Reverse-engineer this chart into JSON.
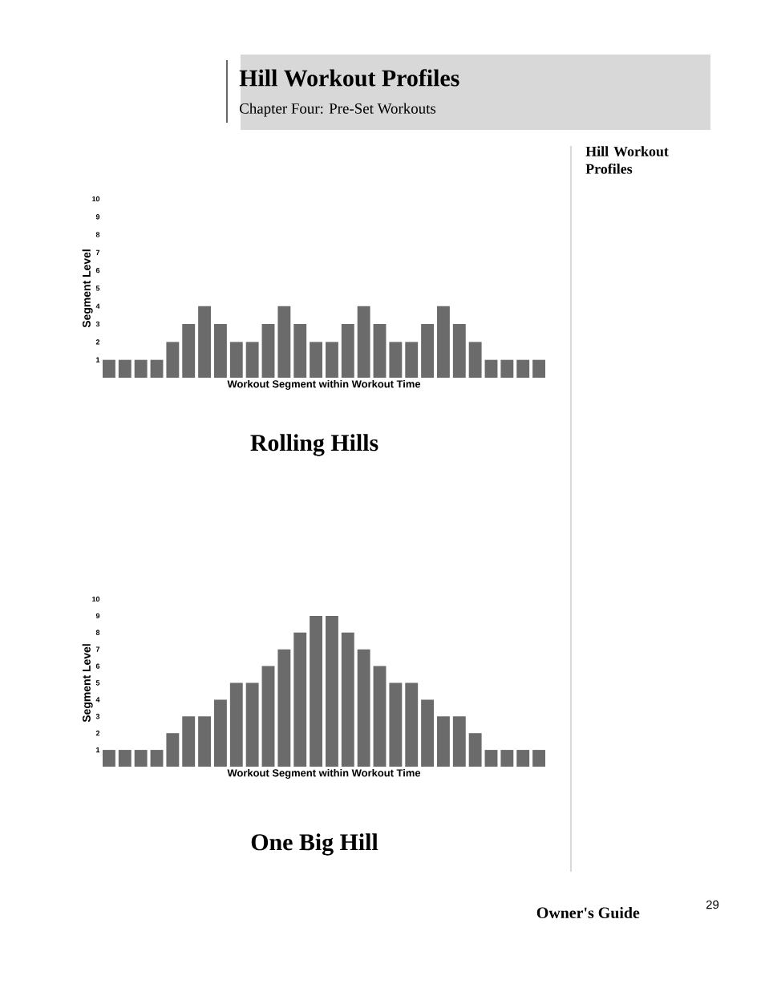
{
  "chart_data": [
    {
      "type": "bar",
      "title": "Rolling Hills",
      "xlabel": "Workout Segment within Workout Time",
      "ylabel": "Segment Level",
      "categories": [
        null,
        null,
        null,
        null,
        null,
        null,
        null,
        null,
        null,
        null,
        null,
        null,
        null,
        null,
        null,
        null,
        null,
        null,
        null,
        null,
        null,
        null,
        null,
        null,
        null,
        null,
        null,
        null
      ],
      "values": [
        1,
        1,
        1,
        1,
        2,
        3,
        4,
        3,
        2,
        2,
        3,
        4,
        3,
        2,
        2,
        3,
        4,
        3,
        2,
        2,
        3,
        4,
        3,
        2,
        1,
        1,
        1,
        1
      ],
      "color": "#6b6b6b",
      "ylim": [
        0,
        10
      ],
      "yticks": [
        1,
        2,
        3,
        4,
        5,
        6,
        7,
        8,
        9,
        10
      ],
      "tick_labels": "y",
      "annotations": [
        "Hill Workout Profiles",
        "Chapter Four: Pre-Set Workouts",
        "Hill Workout Profiles",
        "Owner's Guide",
        "29"
      ]
    },
    {
      "type": "bar",
      "title": "One Big Hill",
      "xlabel": "Workout Segment within Workout Time",
      "ylabel": "Segment Level",
      "categories": [
        null,
        null,
        null,
        null,
        null,
        null,
        null,
        null,
        null,
        null,
        null,
        null,
        null,
        null,
        null,
        null,
        null,
        null,
        null,
        null,
        null,
        null,
        null,
        null,
        null,
        null,
        null,
        null
      ],
      "values": [
        1,
        1,
        1,
        1,
        2,
        3,
        3,
        4,
        5,
        5,
        6,
        7,
        8,
        9,
        9,
        8,
        7,
        6,
        5,
        5,
        4,
        3,
        3,
        2,
        1,
        1,
        1,
        1
      ],
      "color": "#6b6b6b",
      "ylim": [
        0,
        10
      ],
      "yticks": [
        1,
        2,
        3,
        4,
        5,
        6,
        7,
        8,
        9,
        10
      ],
      "tick_labels": "y"
    }
  ]
}
